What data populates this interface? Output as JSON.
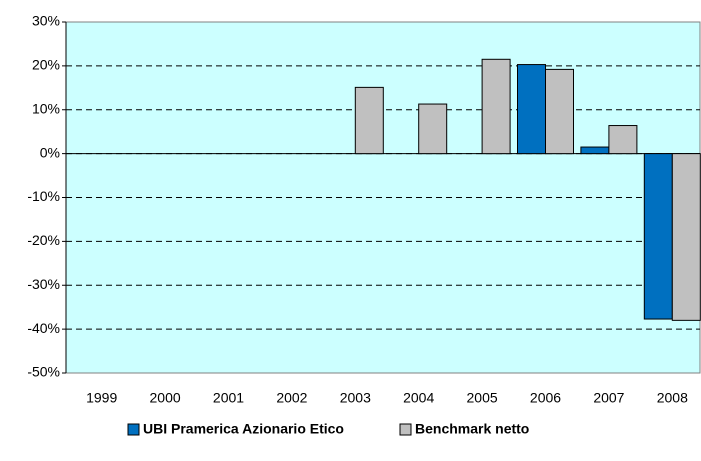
{
  "chart_data": {
    "type": "bar",
    "categories": [
      "1999",
      "2000",
      "2001",
      "2002",
      "2003",
      "2004",
      "2005",
      "2006",
      "2007",
      "2008"
    ],
    "series": [
      {
        "name": "UBI Pramerica Azionario Etico",
        "color": "#0070c0",
        "values": [
          null,
          null,
          null,
          null,
          null,
          null,
          null,
          20.3,
          1.5,
          -37.7
        ]
      },
      {
        "name": "Benchmark netto",
        "color": "#c0c0c0",
        "values": [
          null,
          null,
          null,
          null,
          15.1,
          11.3,
          21.5,
          19.2,
          6.4,
          -38.0
        ]
      }
    ],
    "ylim": [
      -50,
      30
    ],
    "yticks": [
      {
        "value": -50,
        "label": "-50%"
      },
      {
        "value": -40,
        "label": "-40%"
      },
      {
        "value": -30,
        "label": "-30%"
      },
      {
        "value": -20,
        "label": "-20%"
      },
      {
        "value": -10,
        "label": "-10%"
      },
      {
        "value": 0,
        "label": "0%"
      },
      {
        "value": 10,
        "label": "10%"
      },
      {
        "value": 20,
        "label": "20%"
      },
      {
        "value": 30,
        "label": "30%"
      }
    ],
    "grid": true,
    "legend": "bottom"
  }
}
